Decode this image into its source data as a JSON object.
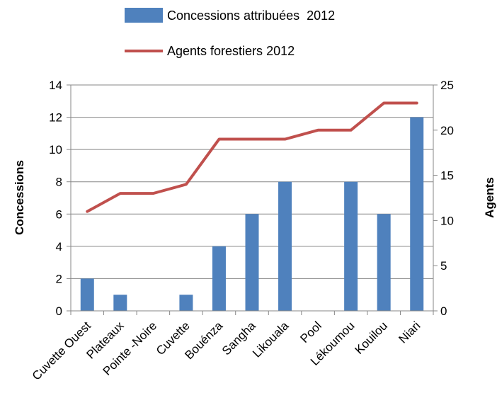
{
  "chart_data": {
    "type": "bar",
    "categories": [
      "Cuvette Ouest",
      "Plateaux",
      "Pointe -Noire",
      "Cuvette",
      "Bouénza",
      "Sangha",
      "Likouala",
      "Pool",
      "Lékoumou",
      "Kouilou",
      "Niari"
    ],
    "series": [
      {
        "name": "Concessions attribuées  2012",
        "type": "bar",
        "axis": "left",
        "color": "#4f81bd",
        "values": [
          2,
          1,
          0,
          1,
          4,
          6,
          8,
          0,
          8,
          6,
          12
        ]
      },
      {
        "name": "Agents forestiers 2012",
        "type": "line",
        "axis": "right",
        "color": "#c0504d",
        "values": [
          11,
          13,
          13,
          14,
          19,
          19,
          19,
          20,
          20,
          23,
          23
        ]
      }
    ],
    "ylabel": "Concessions",
    "y2label": "Agents",
    "ylim": [
      0,
      14
    ],
    "y2lim": [
      0,
      25
    ],
    "yticks": [
      0,
      2,
      4,
      6,
      8,
      10,
      12,
      14
    ],
    "y2ticks": [
      0,
      5,
      10,
      15,
      20,
      25
    ],
    "grid": true,
    "legend_position": "top"
  }
}
